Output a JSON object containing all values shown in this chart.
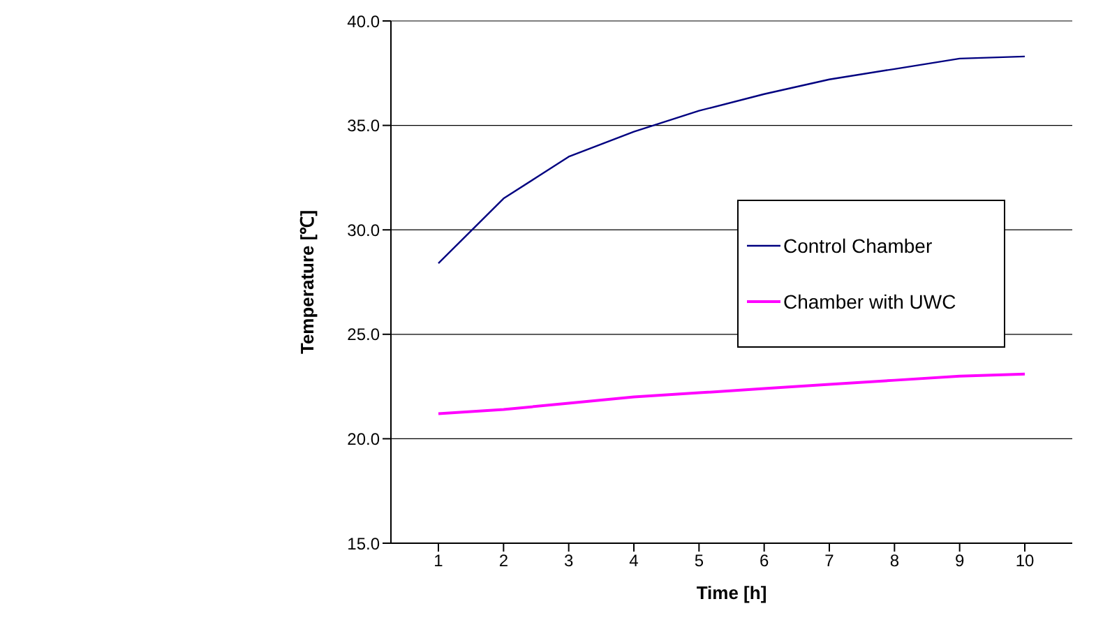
{
  "chart_data": {
    "type": "line",
    "xlabel": "Time [h]",
    "ylabel": "Temperature [℃]",
    "categories": [
      "1",
      "2",
      "3",
      "4",
      "5",
      "6",
      "7",
      "8",
      "9",
      "10"
    ],
    "series": [
      {
        "name": "Control Chamber",
        "color": "#000080",
        "values": [
          28.4,
          31.5,
          33.5,
          34.7,
          35.7,
          36.5,
          37.2,
          37.7,
          38.2,
          38.3
        ]
      },
      {
        "name": "Chamber with UWC",
        "color": "#ff00ff",
        "values": [
          21.2,
          21.4,
          21.7,
          22.0,
          22.2,
          22.4,
          22.6,
          22.8,
          23.0,
          23.1
        ]
      }
    ],
    "ylim": [
      15,
      40
    ],
    "yticks": [
      {
        "value": 15,
        "label": "15.0"
      },
      {
        "value": 20,
        "label": "20.0"
      },
      {
        "value": 25,
        "label": "25.0"
      },
      {
        "value": 30,
        "label": "30.0"
      },
      {
        "value": 35,
        "label": "35.0"
      },
      {
        "value": 40,
        "label": "40.0"
      }
    ],
    "grid": "y",
    "legend": "right",
    "marker": "none",
    "line_style": "solid"
  }
}
